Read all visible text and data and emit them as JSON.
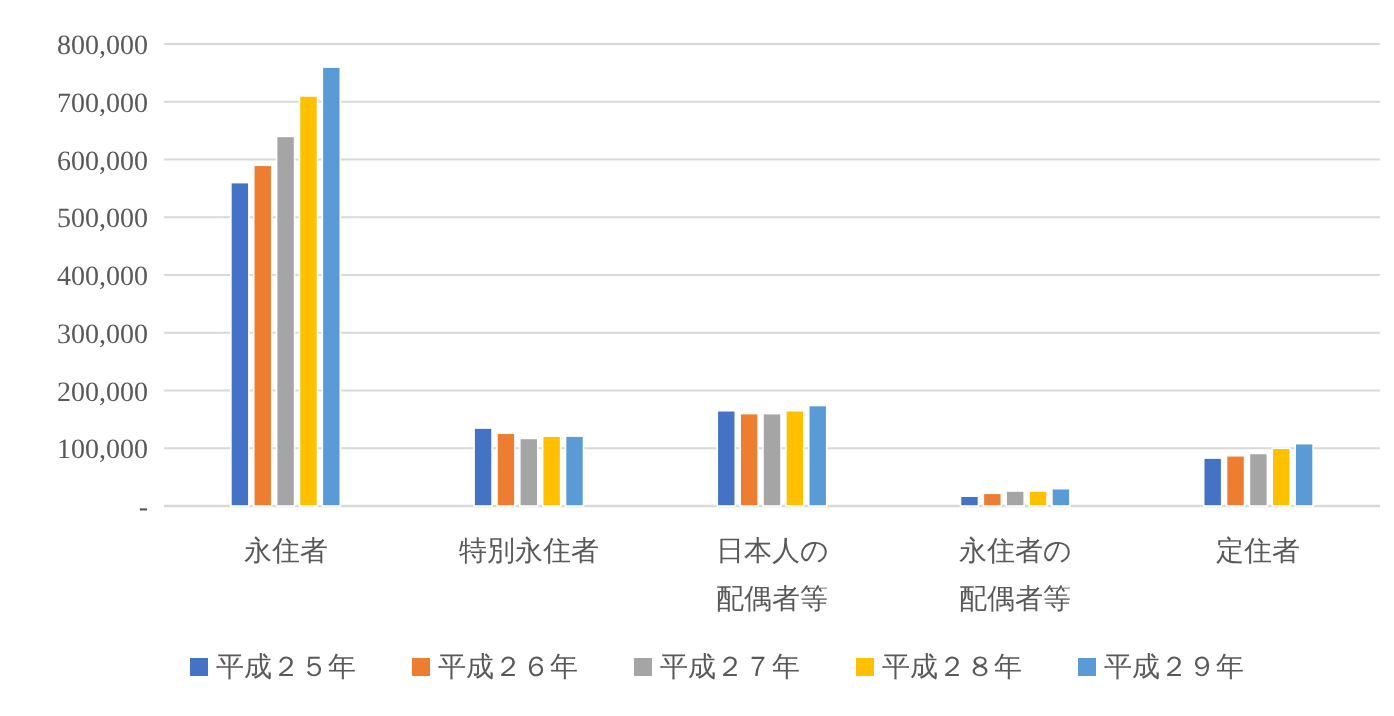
{
  "chart_data": {
    "type": "bar",
    "categories": [
      "永住者",
      "特別永住者",
      "日本人の配偶者等",
      "永住者の配偶者等",
      "定住者"
    ],
    "series": [
      {
        "name": "平成２５年",
        "color": "#4472c4",
        "values": [
          560000,
          135000,
          165000,
          17000,
          83000
        ]
      },
      {
        "name": "平成２６年",
        "color": "#ed7d31",
        "values": [
          590000,
          126000,
          160000,
          22000,
          87000
        ]
      },
      {
        "name": "平成２７年",
        "color": "#a5a5a5",
        "values": [
          640000,
          117000,
          160000,
          26000,
          91000
        ]
      },
      {
        "name": "平成２８年",
        "color": "#ffc000",
        "values": [
          710000,
          121000,
          165000,
          26000,
          100000
        ]
      },
      {
        "name": "平成２９年",
        "color": "#5b9bd5",
        "values": [
          760000,
          121000,
          174000,
          30000,
          108000
        ]
      }
    ],
    "ylim": [
      0,
      800000
    ],
    "yticks": [
      {
        "value": 0,
        "label": "-"
      },
      {
        "value": 100000,
        "label": "100,000"
      },
      {
        "value": 200000,
        "label": "200,000"
      },
      {
        "value": 300000,
        "label": "300,000"
      },
      {
        "value": 400000,
        "label": "400,000"
      },
      {
        "value": 500000,
        "label": "500,000"
      },
      {
        "value": 600000,
        "label": "600,000"
      },
      {
        "value": 700000,
        "label": "700,000"
      },
      {
        "value": 800000,
        "label": "800,000"
      }
    ],
    "grid": "y",
    "legend": "bottom"
  }
}
